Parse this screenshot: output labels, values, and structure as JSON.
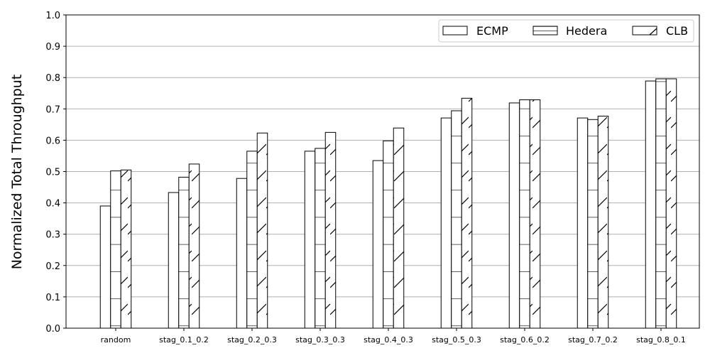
{
  "chart_data": {
    "type": "bar",
    "title": "",
    "xlabel": "",
    "ylabel": "Normalized Total Throughput",
    "ylim": [
      0,
      1.0
    ],
    "yticks": [
      "0.0",
      "0.1",
      "0.2",
      "0.3",
      "0.4",
      "0.5",
      "0.6",
      "0.7",
      "0.8",
      "0.9",
      "1.0"
    ],
    "grid": "horizontal",
    "legend_position": "top-right",
    "categories": [
      "random",
      "stag_0.1_0.2",
      "stag_0.2_0.3",
      "stag_0.3_0.3",
      "stag_0.4_0.3",
      "stag_0.5_0.3",
      "stag_0.6_0.2",
      "stag_0.7_0.2",
      "stag_0.8_0.1"
    ],
    "series": [
      {
        "name": "ECMP",
        "pattern": "none",
        "values": [
          0.39,
          0.433,
          0.478,
          0.565,
          0.535,
          0.671,
          0.719,
          0.671,
          0.789
        ]
      },
      {
        "name": "Hedera",
        "pattern": "horizontal-hatch",
        "values": [
          0.502,
          0.482,
          0.565,
          0.574,
          0.598,
          0.694,
          0.729,
          0.666,
          0.796
        ]
      },
      {
        "name": "CLB",
        "pattern": "diagonal-hatch",
        "values": [
          0.505,
          0.524,
          0.623,
          0.625,
          0.639,
          0.734,
          0.729,
          0.677,
          0.796
        ]
      }
    ],
    "colors": {
      "bar_fill": "#ffffff",
      "bar_edge": "#000000",
      "grid": "#b0b0b0"
    }
  }
}
